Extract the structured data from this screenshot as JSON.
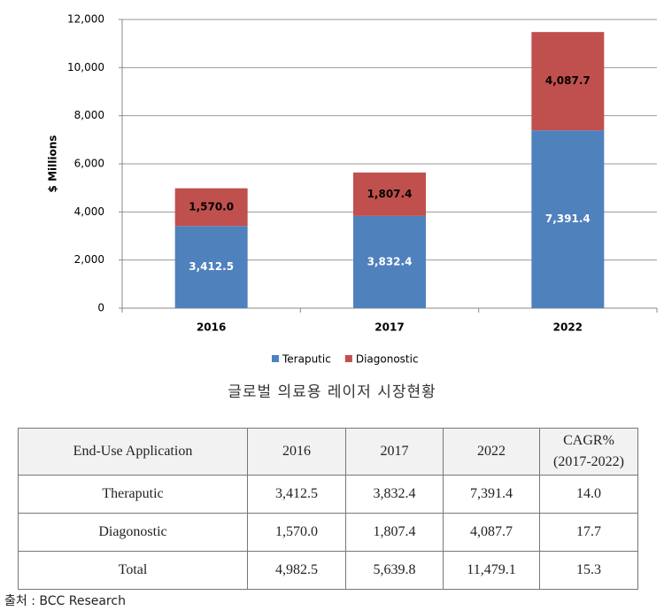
{
  "chart_data": {
    "type": "stacked-bar",
    "y_label": "$ Millions",
    "categories": [
      "2016",
      "2017",
      "2022"
    ],
    "series": [
      {
        "name": "Teraputic",
        "color": "#4f81bd",
        "values": [
          3412.5,
          3832.4,
          7391.4
        ],
        "value_labels": [
          "3,412.5",
          "3,832.4",
          "7,391.4"
        ]
      },
      {
        "name": "Diagonostic",
        "color": "#c0504d",
        "values": [
          1570.0,
          1807.4,
          4087.7
        ],
        "value_labels": [
          "1,570.0",
          "1,807.4",
          "4,087.7"
        ]
      }
    ],
    "ylim": [
      0,
      12000
    ],
    "yticks": [
      0,
      {
        "value": 2000,
        "label": "2,000"
      },
      {
        "value": 4000,
        "label": "4,000"
      },
      {
        "value": 6000,
        "label": "6,000"
      },
      {
        "value": 8000,
        "label": "8,000"
      },
      {
        "value": 10000,
        "label": "10,000"
      },
      {
        "value": 12000,
        "label": "12,000"
      }
    ],
    "grid": true,
    "legend": "bottom"
  },
  "caption": "글로벌 의료용 레이저 시장현황",
  "table": {
    "header": [
      "End-Use Application",
      "2016",
      "2017",
      "2022",
      [
        "CAGR%",
        "(2017-2022)"
      ]
    ],
    "rows": [
      [
        "Theraputic",
        "3,412.5",
        "3,832.4",
        "7,391.4",
        "14.0"
      ],
      [
        "Diagonostic",
        "1,570.0",
        "1,807.4",
        "4,087.7",
        "17.7"
      ],
      [
        "Total",
        "4,982.5",
        "5,639.8",
        "11,479.1",
        "15.3"
      ]
    ]
  },
  "source": "출처 : BCC Research"
}
